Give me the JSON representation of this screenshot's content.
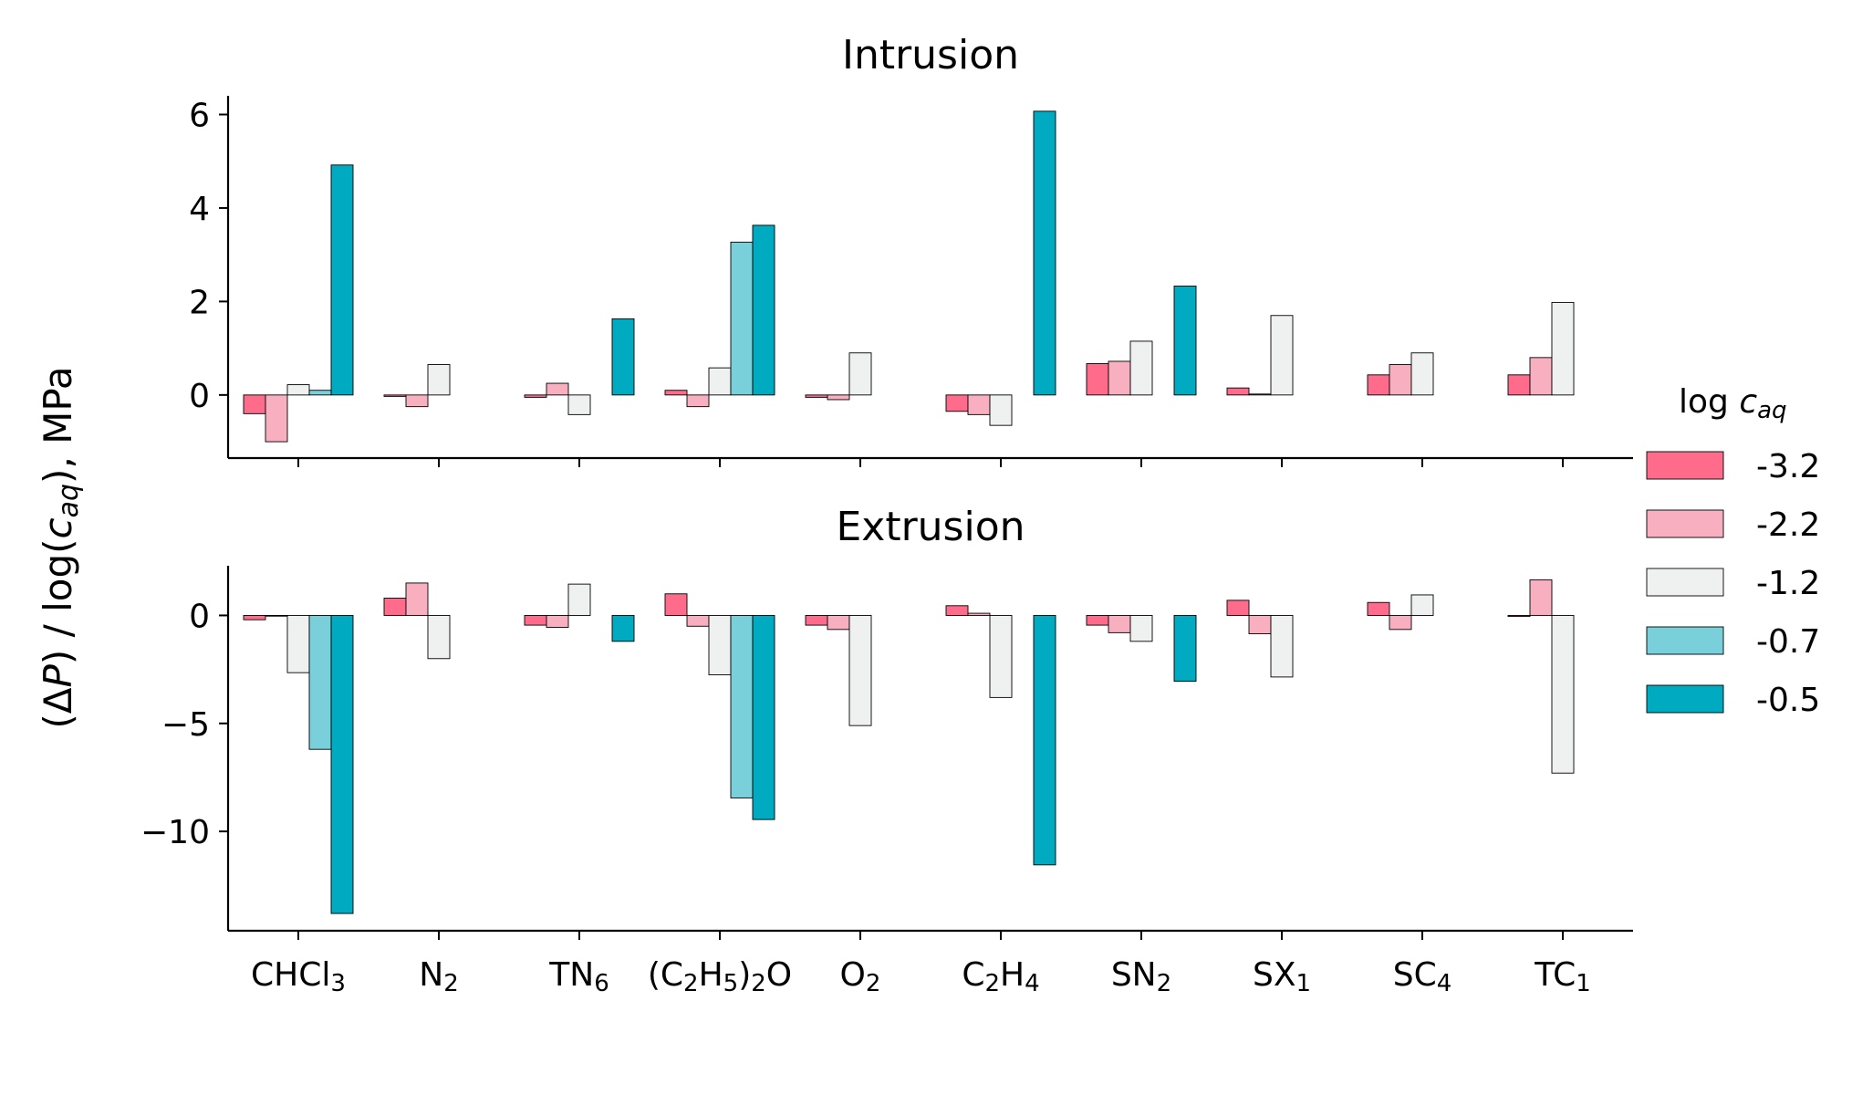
{
  "chart_data": {
    "type": "bar",
    "ylabel": "(ΔP) / log(c_aq), MPa",
    "legend": {
      "title": "log c_aq",
      "placement": "right",
      "entries": [
        {
          "label": "-3.2",
          "color": "#ff6b8b"
        },
        {
          "label": "-2.2",
          "color": "#f8b0c0"
        },
        {
          "label": "-1.2",
          "color": "#eff1f1"
        },
        {
          "label": "-0.7",
          "color": "#7ad0da"
        },
        {
          "label": "-0.5",
          "color": "#00aac0"
        }
      ]
    },
    "categories": [
      "CHCl3",
      "N2",
      "TN6",
      "(C2H5)2O",
      "O2",
      "C2H4",
      "SN2",
      "SX1",
      "SC4",
      "TC1"
    ],
    "panels": [
      {
        "title": "Intrusion",
        "ylim": [
          -1.35,
          6.4
        ],
        "yticks": [
          0,
          2,
          4,
          6
        ],
        "ytick_labels": [
          "0",
          "2",
          "4",
          "6"
        ],
        "series": [
          {
            "name": "-3.2",
            "values": [
              -0.4,
              -0.03,
              -0.05,
              0.1,
              -0.05,
              -0.35,
              0.67,
              0.15,
              0.43,
              0.43
            ]
          },
          {
            "name": "-2.2",
            "values": [
              -1.0,
              -0.25,
              0.25,
              -0.25,
              -0.1,
              -0.42,
              0.72,
              0.02,
              0.65,
              0.8
            ]
          },
          {
            "name": "-1.2",
            "values": [
              0.22,
              0.65,
              -0.42,
              0.58,
              0.9,
              -0.65,
              1.15,
              1.7,
              0.9,
              1.98
            ]
          },
          {
            "name": "-0.7",
            "values": [
              0.1,
              null,
              null,
              3.27,
              null,
              null,
              null,
              null,
              null,
              null
            ]
          },
          {
            "name": "-0.5",
            "values": [
              4.92,
              null,
              1.63,
              3.63,
              null,
              6.07,
              2.33,
              null,
              null,
              null
            ]
          }
        ]
      },
      {
        "title": "Extrusion",
        "ylim": [
          -14.6,
          2.3
        ],
        "yticks": [
          0,
          -5,
          -10
        ],
        "ytick_labels": [
          "0",
          "−5",
          "−10"
        ],
        "series": [
          {
            "name": "-3.2",
            "values": [
              -0.2,
              0.8,
              -0.45,
              1.0,
              -0.45,
              0.45,
              -0.45,
              0.7,
              0.6,
              -0.05
            ]
          },
          {
            "name": "-2.2",
            "values": [
              0,
              1.5,
              -0.55,
              -0.5,
              -0.65,
              0.1,
              -0.8,
              -0.85,
              -0.65,
              1.65
            ]
          },
          {
            "name": "-1.2",
            "values": [
              -2.65,
              -2.0,
              1.45,
              -2.75,
              -5.1,
              -3.8,
              -1.2,
              -2.85,
              0.95,
              -7.3
            ]
          },
          {
            "name": "-0.7",
            "values": [
              -6.2,
              null,
              null,
              -8.45,
              null,
              null,
              null,
              null,
              null,
              null
            ]
          },
          {
            "name": "-0.5",
            "values": [
              -13.8,
              null,
              -1.2,
              -9.45,
              null,
              -11.55,
              -3.05,
              null,
              null,
              null
            ]
          }
        ]
      }
    ]
  }
}
